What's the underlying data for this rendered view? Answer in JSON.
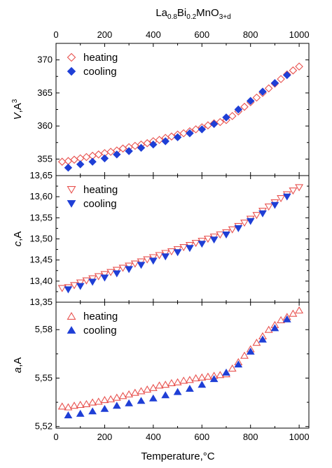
{
  "figure": {
    "top_title_main": "La",
    "top_title_sub1": "0.8",
    "top_title_mid": "Bi",
    "top_title_sub2": "0.2",
    "top_title_end": "MnO",
    "top_title_sub3": "3+d",
    "xlabel_main": "Temperature,",
    "xlabel_unit": "°C",
    "x_ticks": [
      0,
      200,
      400,
      600,
      800,
      1000
    ],
    "xlim": [
      0,
      1040
    ],
    "colors": {
      "heating": "#e8524f",
      "cooling": "#1f3fd6",
      "axis": "#000000"
    }
  },
  "chart_data": [
    {
      "type": "scatter",
      "ylabel_var": "V",
      "ylabel_unit": ",A",
      "ylabel_sup": "3",
      "ylim": [
        352.5,
        372.5
      ],
      "y_ticks": [
        "355",
        "360",
        "365",
        "370"
      ],
      "y_tick_values": [
        355,
        360,
        365,
        370
      ],
      "grid": false,
      "legend_position": "top-left",
      "series": [
        {
          "name": "heating",
          "marker": "diamond-open",
          "x": [
            25,
            50,
            75,
            100,
            125,
            150,
            175,
            200,
            225,
            250,
            275,
            300,
            325,
            350,
            375,
            400,
            425,
            450,
            475,
            500,
            525,
            550,
            575,
            600,
            625,
            650,
            675,
            700,
            725,
            750,
            775,
            800,
            825,
            850,
            875,
            900,
            925,
            950,
            975,
            1000
          ],
          "y": [
            354.6,
            354.7,
            354.9,
            355.1,
            355.3,
            355.5,
            355.7,
            355.9,
            356.1,
            356.3,
            356.6,
            356.8,
            357.0,
            357.2,
            357.4,
            357.7,
            357.9,
            358.2,
            358.4,
            358.7,
            358.9,
            359.2,
            359.5,
            359.8,
            360.1,
            360.4,
            360.6,
            360.9,
            361.5,
            362.2,
            362.9,
            363.6,
            364.3,
            365.0,
            365.7,
            366.4,
            367.1,
            367.8,
            368.4,
            369.0
          ]
        },
        {
          "name": "cooling",
          "marker": "diamond-filled",
          "x": [
            50,
            100,
            150,
            200,
            250,
            300,
            350,
            400,
            450,
            500,
            550,
            600,
            650,
            700,
            750,
            800,
            850,
            900,
            950
          ],
          "y": [
            353.7,
            354.2,
            354.6,
            355.1,
            355.7,
            356.2,
            356.7,
            357.2,
            357.7,
            358.3,
            358.9,
            359.5,
            360.3,
            361.3,
            362.5,
            363.8,
            365.2,
            366.5,
            367.7
          ]
        }
      ]
    },
    {
      "type": "scatter",
      "ylabel_var": "c",
      "ylabel_unit": ",A",
      "ylabel_sup": "",
      "ylim": [
        13.35,
        13.65
      ],
      "y_ticks": [
        "13,35",
        "13,40",
        "13,45",
        "13,50",
        "13,55",
        "13,60",
        "13,65"
      ],
      "y_tick_values": [
        13.35,
        13.4,
        13.45,
        13.5,
        13.55,
        13.6,
        13.65
      ],
      "grid": false,
      "legend_position": "top-left",
      "series": [
        {
          "name": "heating",
          "marker": "triangle-down-open",
          "x": [
            25,
            50,
            75,
            100,
            125,
            150,
            175,
            200,
            225,
            250,
            275,
            300,
            325,
            350,
            375,
            400,
            425,
            450,
            475,
            500,
            525,
            550,
            575,
            600,
            625,
            650,
            675,
            700,
            725,
            750,
            775,
            800,
            825,
            850,
            875,
            900,
            925,
            950,
            975,
            1000
          ],
          "y": [
            13.383,
            13.385,
            13.39,
            13.396,
            13.401,
            13.406,
            13.411,
            13.416,
            13.421,
            13.426,
            13.431,
            13.436,
            13.441,
            13.446,
            13.451,
            13.456,
            13.461,
            13.466,
            13.47,
            13.475,
            13.48,
            13.485,
            13.49,
            13.495,
            13.5,
            13.505,
            13.51,
            13.515,
            13.522,
            13.53,
            13.538,
            13.547,
            13.556,
            13.566,
            13.576,
            13.586,
            13.596,
            13.605,
            13.614,
            13.622
          ]
        },
        {
          "name": "cooling",
          "marker": "triangle-down-filled",
          "x": [
            50,
            100,
            150,
            200,
            250,
            300,
            350,
            400,
            450,
            500,
            550,
            600,
            650,
            700,
            750,
            800,
            850,
            900,
            950
          ],
          "y": [
            13.38,
            13.388,
            13.398,
            13.408,
            13.418,
            13.428,
            13.438,
            13.448,
            13.458,
            13.468,
            13.478,
            13.488,
            13.498,
            13.51,
            13.525,
            13.542,
            13.56,
            13.58,
            13.6
          ]
        }
      ]
    },
    {
      "type": "scatter",
      "ylabel_var": "a",
      "ylabel_unit": ",A",
      "ylabel_sup": "",
      "ylim": [
        5.519,
        5.597
      ],
      "y_ticks": [
        "5,52",
        "5,55",
        "5,58"
      ],
      "y_tick_values": [
        5.52,
        5.55,
        5.58
      ],
      "grid": false,
      "legend_position": "top-left",
      "series": [
        {
          "name": "heating",
          "marker": "triangle-up-open",
          "x": [
            25,
            50,
            75,
            100,
            125,
            150,
            175,
            200,
            225,
            250,
            275,
            300,
            325,
            350,
            375,
            400,
            425,
            450,
            475,
            500,
            525,
            550,
            575,
            600,
            625,
            650,
            675,
            700,
            725,
            750,
            775,
            800,
            825,
            850,
            875,
            900,
            925,
            950,
            975,
            1000
          ],
          "y": [
            5.5325,
            5.532,
            5.533,
            5.5335,
            5.534,
            5.535,
            5.5355,
            5.5365,
            5.537,
            5.538,
            5.539,
            5.54,
            5.541,
            5.542,
            5.543,
            5.544,
            5.5455,
            5.546,
            5.547,
            5.5475,
            5.5485,
            5.549,
            5.55,
            5.5505,
            5.551,
            5.5515,
            5.552,
            5.5525,
            5.556,
            5.56,
            5.564,
            5.568,
            5.572,
            5.576,
            5.58,
            5.583,
            5.586,
            5.588,
            5.59,
            5.592
          ]
        },
        {
          "name": "cooling",
          "marker": "triangle-up-filled",
          "x": [
            50,
            100,
            150,
            200,
            250,
            300,
            350,
            400,
            450,
            500,
            550,
            600,
            650,
            700,
            750,
            800,
            850,
            900,
            950
          ],
          "y": [
            5.527,
            5.528,
            5.5295,
            5.531,
            5.533,
            5.5345,
            5.536,
            5.5375,
            5.5395,
            5.5415,
            5.5435,
            5.546,
            5.5495,
            5.5535,
            5.5585,
            5.5665,
            5.574,
            5.581,
            5.5865
          ]
        }
      ]
    }
  ]
}
